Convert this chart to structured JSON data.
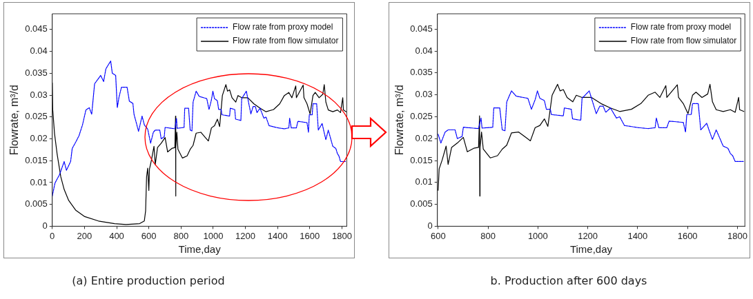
{
  "chart_data": [
    {
      "type": "line",
      "xlabel": "Time,day",
      "ylabel": "Flowrate, m³/d",
      "legend": "top right",
      "grid": false,
      "xlim": [
        0,
        1830
      ],
      "xticks": [
        0,
        200,
        400,
        600,
        800,
        1000,
        1200,
        1400,
        1600,
        1800
      ],
      "ylim": [
        0,
        0.0486
      ],
      "yticks": [
        0,
        0.005,
        0.01,
        0.015,
        0.02,
        0.025,
        0.03,
        0.035,
        0.04,
        0.045
      ],
      "annotations": [
        "(a) Entire production period"
      ],
      "series": [
        {
          "name": "Flow rate from proxy model",
          "color": "#0000ff",
          "line_style": "dashed",
          "x": [
            0,
            17,
            45,
            74,
            88,
            114,
            124,
            145,
            166,
            188,
            209,
            230,
            245,
            263,
            301,
            319,
            333,
            363,
            373,
            394,
            404,
            415,
            430,
            465,
            479,
            501,
            508,
            522,
            536,
            558,
            572,
            593,
            600,
            611,
            628,
            640,
            668,
            677,
            696,
            701,
            762,
            772,
            776,
            819,
            823,
            847,
            857,
            868,
            875,
            894,
            913,
            960,
            974,
            989,
            998,
            1008,
            1026,
            1034,
            1050,
            1054,
            1102,
            1106,
            1134,
            1139,
            1172,
            1177,
            1206,
            1215,
            1234,
            1248,
            1262,
            1272,
            1291,
            1315,
            1328,
            1347,
            1404,
            1442,
            1470,
            1475,
            1485,
            1517,
            1526,
            1583,
            1592,
            1597,
            1615,
            1620,
            1643,
            1653,
            1677,
            1686,
            1700,
            1715,
            1743,
            1762,
            1772,
            1781,
            1791,
            1824
          ],
          "values": [
            0.0069,
            0.0099,
            0.0118,
            0.0148,
            0.0128,
            0.0148,
            0.0178,
            0.0192,
            0.0207,
            0.0232,
            0.0266,
            0.0271,
            0.0256,
            0.0326,
            0.0345,
            0.0331,
            0.036,
            0.0378,
            0.035,
            0.0345,
            0.0271,
            0.0296,
            0.0318,
            0.0318,
            0.0286,
            0.0281,
            0.0256,
            0.0237,
            0.0217,
            0.0252,
            0.0232,
            0.0222,
            0.021,
            0.019,
            0.0215,
            0.022,
            0.022,
            0.02,
            0.0205,
            0.0226,
            0.0223,
            0.0247,
            0.0224,
            0.0226,
            0.027,
            0.027,
            0.022,
            0.0218,
            0.0284,
            0.0309,
            0.0297,
            0.0292,
            0.0267,
            0.0289,
            0.0309,
            0.0292,
            0.0287,
            0.0267,
            0.0267,
            0.0255,
            0.0252,
            0.027,
            0.0267,
            0.0245,
            0.0242,
            0.0292,
            0.0309,
            0.0292,
            0.0257,
            0.0274,
            0.0274,
            0.026,
            0.027,
            0.0247,
            0.025,
            0.023,
            0.0225,
            0.0223,
            0.0225,
            0.0247,
            0.0225,
            0.0225,
            0.024,
            0.0237,
            0.0215,
            0.0255,
            0.0255,
            0.028,
            0.028,
            0.022,
            0.0235,
            0.022,
            0.0198,
            0.022,
            0.0183,
            0.0178,
            0.0166,
            0.0161,
            0.0148,
            0.0148
          ]
        },
        {
          "name": "Flow rate from flow simulator",
          "color": "#000000",
          "line_style": "solid",
          "x": [
            0,
            3,
            14,
            31,
            53,
            74,
            102,
            145,
            202,
            287,
            387,
            458,
            543,
            572,
            580,
            586,
            593,
            600,
            604,
            616,
            632,
            640,
            654,
            677,
            701,
            717,
            743,
            762,
            766,
            767,
            768,
            774,
            781,
            809,
            838,
            857,
            875,
            894,
            923,
            951,
            970,
            989,
            1008,
            1026,
            1040,
            1057,
            1079,
            1089,
            1102,
            1117,
            1140,
            1154,
            1177,
            1215,
            1253,
            1291,
            1328,
            1375,
            1413,
            1442,
            1470,
            1489,
            1513,
            1517,
            1559,
            1564,
            1583,
            1602,
            1620,
            1634,
            1658,
            1681,
            1690,
            1700,
            1715,
            1743,
            1772,
            1791,
            1805,
            1809,
            1826
          ],
          "values": [
            0.0328,
            0.0266,
            0.0212,
            0.0163,
            0.0113,
            0.0084,
            0.0059,
            0.0037,
            0.0022,
            0.0012,
            0.0006,
            0.0004,
            0.0006,
            0.0012,
            0.0035,
            0.0113,
            0.0133,
            0.0082,
            0.0131,
            0.0151,
            0.0183,
            0.0141,
            0.018,
            0.019,
            0.0203,
            0.017,
            0.0178,
            0.018,
            0.0252,
            0.0069,
            0.018,
            0.0215,
            0.0176,
            0.0156,
            0.0161,
            0.0176,
            0.0185,
            0.0213,
            0.0215,
            0.0203,
            0.0195,
            0.0225,
            0.023,
            0.0245,
            0.0228,
            0.0299,
            0.0324,
            0.0309,
            0.0312,
            0.0294,
            0.0284,
            0.0299,
            0.0294,
            0.0294,
            0.028,
            0.027,
            0.0262,
            0.0267,
            0.028,
            0.0299,
            0.0306,
            0.0294,
            0.0321,
            0.0294,
            0.0323,
            0.0294,
            0.028,
            0.0257,
            0.0299,
            0.0306,
            0.0294,
            0.0302,
            0.0324,
            0.0284,
            0.0266,
            0.0262,
            0.0266,
            0.026,
            0.0294,
            0.0266,
            0.0262
          ]
        }
      ]
    },
    {
      "type": "line",
      "xlabel": "Time,day",
      "ylabel": "Flowrate, m³/d",
      "legend": "top right",
      "grid": false,
      "xlim": [
        597,
        1830
      ],
      "xticks": [
        600,
        800,
        1000,
        1200,
        1400,
        1600,
        1800
      ],
      "ylim": [
        0,
        0.0485
      ],
      "yticks": [
        0,
        0.005,
        0.01,
        0.015,
        0.02,
        0.025,
        0.03,
        0.035,
        0.04,
        0.045
      ],
      "annotations": [
        "b. Production after 600 days"
      ],
      "series": [
        {
          "name": "Flow rate from proxy model",
          "color": "#0000ff",
          "line_style": "dashed",
          "x": [
            600,
            611,
            628,
            640,
            668,
            677,
            696,
            701,
            762,
            772,
            776,
            819,
            823,
            847,
            857,
            868,
            875,
            894,
            913,
            960,
            974,
            989,
            998,
            1008,
            1026,
            1034,
            1050,
            1054,
            1102,
            1106,
            1134,
            1139,
            1172,
            1177,
            1206,
            1215,
            1234,
            1248,
            1262,
            1272,
            1291,
            1315,
            1328,
            1347,
            1404,
            1442,
            1470,
            1475,
            1485,
            1517,
            1526,
            1583,
            1592,
            1597,
            1615,
            1620,
            1643,
            1653,
            1677,
            1686,
            1700,
            1715,
            1743,
            1762,
            1772,
            1781,
            1791,
            1824
          ],
          "values": [
            0.021,
            0.019,
            0.0215,
            0.022,
            0.022,
            0.02,
            0.0205,
            0.0226,
            0.0223,
            0.0247,
            0.0224,
            0.0226,
            0.027,
            0.027,
            0.022,
            0.0218,
            0.0284,
            0.0309,
            0.0297,
            0.0292,
            0.0267,
            0.0289,
            0.0309,
            0.0292,
            0.0287,
            0.0267,
            0.0267,
            0.0255,
            0.0252,
            0.027,
            0.0267,
            0.0245,
            0.0242,
            0.0292,
            0.0309,
            0.0292,
            0.0257,
            0.0274,
            0.0274,
            0.026,
            0.027,
            0.0247,
            0.025,
            0.023,
            0.0225,
            0.0223,
            0.0225,
            0.0247,
            0.0225,
            0.0225,
            0.024,
            0.0237,
            0.0215,
            0.0255,
            0.0255,
            0.028,
            0.028,
            0.022,
            0.0235,
            0.022,
            0.0198,
            0.022,
            0.0183,
            0.0178,
            0.0166,
            0.0161,
            0.0148,
            0.0148
          ]
        },
        {
          "name": "Flow rate from flow simulator",
          "color": "#000000",
          "line_style": "solid",
          "x": [
            600,
            604,
            616,
            632,
            640,
            654,
            677,
            701,
            717,
            743,
            762,
            766,
            767,
            768,
            774,
            781,
            809,
            838,
            857,
            875,
            894,
            923,
            951,
            970,
            989,
            1008,
            1026,
            1040,
            1057,
            1079,
            1089,
            1102,
            1117,
            1140,
            1154,
            1177,
            1215,
            1253,
            1291,
            1328,
            1375,
            1413,
            1442,
            1470,
            1489,
            1513,
            1517,
            1559,
            1564,
            1583,
            1602,
            1620,
            1634,
            1658,
            1681,
            1690,
            1700,
            1715,
            1743,
            1772,
            1791,
            1805,
            1809,
            1826
          ],
          "values": [
            0.0082,
            0.0131,
            0.0151,
            0.0183,
            0.0141,
            0.018,
            0.019,
            0.0203,
            0.017,
            0.0178,
            0.018,
            0.0252,
            0.0069,
            0.018,
            0.0215,
            0.0176,
            0.0156,
            0.0161,
            0.0176,
            0.0185,
            0.0213,
            0.0215,
            0.0203,
            0.0195,
            0.0225,
            0.023,
            0.0245,
            0.0228,
            0.0299,
            0.0324,
            0.0309,
            0.0312,
            0.0294,
            0.0284,
            0.0299,
            0.0294,
            0.0294,
            0.028,
            0.027,
            0.0262,
            0.0267,
            0.028,
            0.0299,
            0.0306,
            0.0294,
            0.0321,
            0.0294,
            0.0323,
            0.0294,
            0.028,
            0.0257,
            0.0299,
            0.0306,
            0.0294,
            0.0302,
            0.0324,
            0.0284,
            0.0266,
            0.0262,
            0.0266,
            0.026,
            0.0294,
            0.0266,
            0.0262
          ]
        }
      ]
    }
  ]
}
